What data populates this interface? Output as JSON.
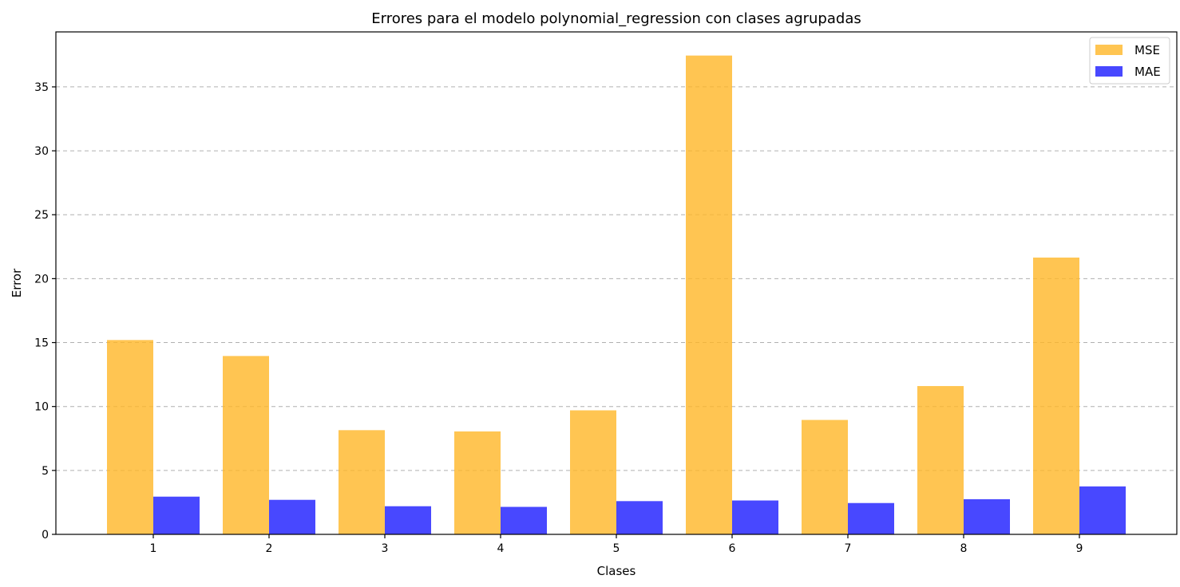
{
  "chart_data": {
    "type": "bar",
    "title": "Errores para el modelo polynomial_regression con clases agrupadas",
    "xlabel": "Clases",
    "ylabel": "Error",
    "categories": [
      "1",
      "2",
      "3",
      "4",
      "5",
      "6",
      "7",
      "8",
      "9"
    ],
    "series": [
      {
        "name": "MSE",
        "color": "#ffb627",
        "values": [
          15.2,
          13.95,
          8.15,
          8.05,
          9.7,
          37.45,
          8.95,
          11.6,
          21.65
        ]
      },
      {
        "name": "MAE",
        "color": "#1a1aff",
        "values": [
          2.95,
          2.7,
          2.2,
          2.15,
          2.6,
          2.65,
          2.45,
          2.75,
          3.75
        ]
      }
    ],
    "ylim": [
      0,
      39.3
    ],
    "yticks": [
      0,
      5,
      10,
      15,
      20,
      25,
      30,
      35
    ],
    "grid": "y-dashed",
    "legend_position": "top-right",
    "bar_opacity": 0.8
  }
}
